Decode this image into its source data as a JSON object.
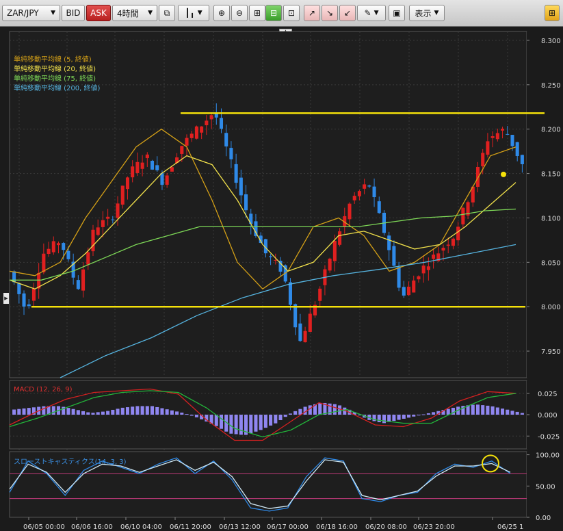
{
  "toolbar": {
    "symbol": "ZAR/JPY",
    "bid_label": "BID",
    "ask_label": "ASK",
    "timeframe": "4時間",
    "display_label": "表示"
  },
  "legend": [
    {
      "label": "単純移動平均線 (5, 終値)",
      "color": "#d4a017"
    },
    {
      "label": "単純移動平均線 (20, 終値)",
      "color": "#f1e14b"
    },
    {
      "label": "単純移動平均線 (75, 終値)",
      "color": "#7ed957"
    },
    {
      "label": "単純移動平均線 (200, 終値)",
      "color": "#56b4e0"
    }
  ],
  "macd_label": "MACD (12, 26, 9)",
  "stoch_label": "スローストキャスティクス(14, 3, 3)",
  "colors": {
    "up": "#e02020",
    "down": "#2f8ae8",
    "level_line": "#f5e10a",
    "grid": "#3a3a3a"
  },
  "chart_data": [
    {
      "type": "candlestick",
      "y_ticks": [
        "8.300",
        "8.250",
        "8.200",
        "8.150",
        "8.100",
        "8.050",
        "8.000",
        "7.950"
      ],
      "ylim": [
        7.92,
        8.31
      ],
      "x_ticks": [
        "06/05 00:00",
        "06/06 16:00",
        "06/10 04:00",
        "06/11 20:00",
        "06/13 12:00",
        "06/17 00:00",
        "06/18 16:00",
        "06/20 08:00",
        "06/23 20:00",
        "06/25 1"
      ],
      "horizontal_lines": [
        8.218,
        8.0
      ],
      "marker_price": 8.149,
      "close_path": [
        8.04,
        7.995,
        8.06,
        8.075,
        8.02,
        8.09,
        8.1,
        8.15,
        8.17,
        8.14,
        8.18,
        8.2,
        8.22,
        8.16,
        8.1,
        8.06,
        8.04,
        7.96,
        8.01,
        8.07,
        8.12,
        8.14,
        8.08,
        8.01,
        8.04,
        8.06,
        8.08,
        8.13,
        8.19,
        8.2,
        8.16
      ],
      "series": [
        {
          "name": "単純移動平均線 (5, 終値)",
          "values": [
            8.04,
            8.035,
            8.05,
            8.1,
            8.14,
            8.18,
            8.2,
            8.18,
            8.12,
            8.05,
            8.02,
            8.04,
            8.09,
            8.1,
            8.08,
            8.04,
            8.05,
            8.07,
            8.12,
            8.17,
            8.18
          ]
        },
        {
          "name": "単純移動平均線 (20, 終値)",
          "values": [
            8.03,
            8.02,
            8.035,
            8.06,
            8.09,
            8.12,
            8.15,
            8.17,
            8.16,
            8.12,
            8.07,
            8.04,
            8.05,
            8.08,
            8.085,
            8.075,
            8.065,
            8.07,
            8.09,
            8.115,
            8.14
          ]
        },
        {
          "name": "単純移動平均線 (75, 終値)",
          "values": [
            8.03,
            8.03,
            8.04,
            8.055,
            8.07,
            8.08,
            8.09,
            8.09,
            8.09,
            8.09,
            8.09,
            8.09,
            8.095,
            8.1,
            8.102,
            8.108,
            8.11
          ]
        },
        {
          "name": "単純移動平均線 (200, 終値)",
          "values": [
            7.92,
            7.945,
            7.965,
            7.99,
            8.01,
            8.025,
            8.035,
            8.042,
            8.05,
            8.06,
            8.07
          ]
        }
      ]
    },
    {
      "type": "bar",
      "title": "MACD (12, 26, 9)",
      "y_ticks": [
        "0.025",
        "0.000",
        "-0.025"
      ],
      "ylim": [
        -0.04,
        0.04
      ],
      "histogram": [
        0.006,
        0.008,
        0.01,
        0.01,
        0.006,
        0.002,
        0.004,
        0.008,
        0.01,
        0.01,
        0.006,
        0.002,
        -0.004,
        -0.012,
        -0.022,
        -0.024,
        -0.018,
        -0.01,
        0.002,
        0.01,
        0.014,
        0.012,
        0.004,
        -0.006,
        -0.01,
        -0.006,
        -0.002,
        0.002,
        0.006,
        0.01,
        0.012,
        0.01,
        0.006,
        0.002
      ],
      "series": [
        {
          "name": "MACD",
          "values": [
            -0.012,
            0.004,
            0.018,
            0.026,
            0.028,
            0.03,
            0.024,
            -0.006,
            -0.03,
            -0.03,
            -0.008,
            0.014,
            0.004,
            -0.012,
            -0.014,
            -0.004,
            0.016,
            0.027,
            0.025
          ]
        },
        {
          "name": "Signal",
          "values": [
            -0.014,
            -0.004,
            0.008,
            0.02,
            0.026,
            0.028,
            0.026,
            0.008,
            -0.016,
            -0.026,
            -0.018,
            0.0,
            0.006,
            -0.006,
            -0.01,
            -0.01,
            0.006,
            0.02,
            0.025
          ]
        }
      ]
    },
    {
      "type": "line",
      "title": "スローストキャスティクス(14, 3, 3)",
      "y_ticks": [
        "100.00",
        "50.00",
        "0.00"
      ],
      "ylim": [
        0,
        105
      ],
      "levels": [
        70,
        30
      ],
      "series": [
        {
          "name": "%K",
          "values": [
            40,
            90,
            70,
            35,
            75,
            90,
            80,
            70,
            85,
            95,
            70,
            90,
            60,
            15,
            10,
            15,
            65,
            95,
            90,
            30,
            25,
            35,
            40,
            70,
            85,
            80,
            90,
            70
          ]
        },
        {
          "name": "%D",
          "values": [
            45,
            85,
            72,
            40,
            70,
            85,
            82,
            72,
            82,
            92,
            75,
            88,
            65,
            22,
            14,
            18,
            58,
            92,
            88,
            35,
            28,
            35,
            42,
            66,
            82,
            82,
            86,
            72
          ]
        }
      ]
    }
  ]
}
